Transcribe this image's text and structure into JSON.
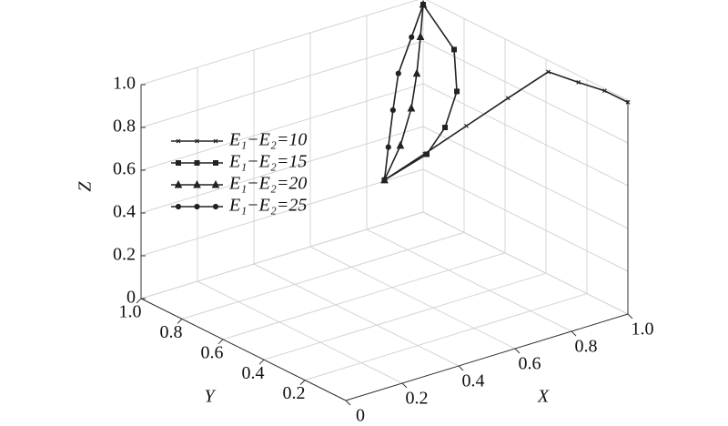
{
  "chart_data": {
    "type": "line3d",
    "xlabel": "X",
    "ylabel": "Y",
    "zlabel": "Z",
    "xlim": [
      0,
      1
    ],
    "ylim": [
      0,
      1
    ],
    "zlim": [
      0,
      1
    ],
    "xticks": [
      0,
      0.2,
      0.4,
      0.6,
      0.8,
      {
        "value": 1,
        "label": "1.0"
      }
    ],
    "yticks": [
      0.2,
      0.4,
      0.6,
      0.8,
      {
        "value": 1,
        "label": "1.0"
      }
    ],
    "zticks": [
      0,
      0.2,
      0.4,
      0.6,
      0.8,
      {
        "value": 1,
        "label": "1.0"
      }
    ],
    "grid": true,
    "legend": "upper left",
    "series": [
      {
        "name": "E₁−E₂=10",
        "color": "#222",
        "marker": "x",
        "x": [
          0.5,
          0.61,
          0.725,
          0.84,
          0.95,
          0.97,
          0.99,
          1.0
        ],
        "y": [
          0.5,
          0.455,
          0.41,
          0.365,
          0.32,
          0.2,
          0.1,
          0.0
        ],
        "z": [
          0.59,
          0.69,
          0.795,
          0.9,
          1.0,
          1.0,
          1.0,
          0.99
        ]
      },
      {
        "name": "E₁−E₂=15",
        "color": "#222",
        "marker": "square",
        "x": [
          0.5,
          0.65,
          0.78,
          0.88,
          0.95,
          1.0
        ],
        "y": [
          0.5,
          0.5,
          0.59,
          0.67,
          0.78,
          1.0
        ],
        "z": [
          0.59,
          0.65,
          0.68,
          0.77,
          0.885,
          0.97
        ]
      },
      {
        "name": "E₁−E₂=20",
        "color": "#222",
        "marker": "triangle",
        "x": [
          0.5,
          0.706,
          0.847,
          0.918,
          0.965,
          1.0
        ],
        "y": [
          0.5,
          0.706,
          0.847,
          0.918,
          0.965,
          1.0
        ],
        "z": [
          0.59,
          0.57,
          0.62,
          0.72,
          0.85,
          0.97
        ]
      },
      {
        "name": "E₁−E₂=25",
        "color": "#222",
        "marker": "circle",
        "x": [
          0.5,
          0.55,
          0.61,
          0.68,
          0.85,
          1.0
        ],
        "y": [
          0.5,
          0.55,
          0.61,
          0.68,
          0.85,
          1.0
        ],
        "z": [
          0.59,
          0.7,
          0.82,
          0.93,
          0.95,
          0.97
        ]
      }
    ]
  }
}
